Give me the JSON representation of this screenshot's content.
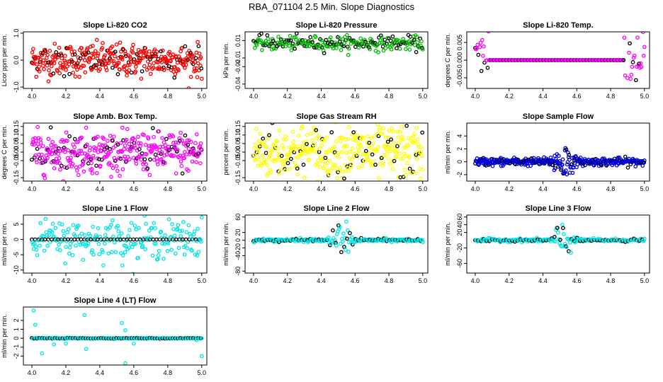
{
  "title": "RBA_071104  2.5 Min. Slope Diagnostics",
  "chart_data": [
    {
      "type": "scatter",
      "title": "Slope Li-820 CO2",
      "ylabel": "Licor ppm per min.",
      "color": "#ff0000",
      "xlim": [
        3.95,
        5.03
      ],
      "ylim": [
        -1.05,
        1.05
      ],
      "xticks": [
        "4.0",
        "4.2",
        "4.4",
        "4.6",
        "4.8",
        "5.0"
      ],
      "xtick_values": [
        4.0,
        4.2,
        4.4,
        4.6,
        4.8,
        5.0
      ],
      "yticks": [
        "-1.0",
        "0.0",
        "1.0"
      ],
      "ytick_values": [
        -1.0,
        0.0,
        1.0
      ],
      "n_points": 380,
      "spread": 0.3,
      "black_every": 6
    },
    {
      "type": "scatter",
      "title": "Slope Li-820 Pressure",
      "ylabel": "kPa per min.",
      "color": "#00bb00",
      "xlim": [
        3.95,
        5.03
      ],
      "ylim": [
        -0.045,
        0.02
      ],
      "xticks": [
        "4.0",
        "4.2",
        "4.4",
        "4.6",
        "4.8",
        "5.0"
      ],
      "xtick_values": [
        4.0,
        4.2,
        4.4,
        4.6,
        4.8,
        5.0
      ],
      "yticks": [
        "-0.04",
        "-0.02",
        "-0.01",
        "0.01"
      ],
      "ytick_values": [
        -0.04,
        -0.02,
        -0.01,
        0.01
      ],
      "n_points": 260,
      "spread": 0.004,
      "center": 0.007,
      "black_every": 3
    },
    {
      "type": "scatter",
      "title": "Slope Li-820 Temp.",
      "ylabel": "degrees C per min.",
      "color": "#ff00ff",
      "xlim": [
        3.95,
        5.03
      ],
      "ylim": [
        -0.008,
        0.008
      ],
      "xticks": [
        "4.0",
        "4.2",
        "4.4",
        "4.6",
        "4.8",
        "5.0"
      ],
      "xtick_values": [
        4.0,
        4.2,
        4.4,
        4.6,
        4.8,
        5.0
      ],
      "yticks": [
        "-0.005",
        "0.000",
        "0.005"
      ],
      "ytick_values": [
        -0.005,
        0.0,
        0.005
      ],
      "n_points": 220,
      "spread": 0.004,
      "black_every": 4
    },
    {
      "type": "scatter",
      "title": "Slope Amb. Box Temp.",
      "ylabel": "degrees C per min.",
      "color": "#ff00ff",
      "xlim": [
        3.95,
        5.03
      ],
      "ylim": [
        -0.17,
        0.17
      ],
      "xticks": [
        "4.0",
        "4.2",
        "4.4",
        "4.6",
        "4.8",
        "5.0"
      ],
      "xtick_values": [
        4.0,
        4.2,
        4.4,
        4.6,
        4.8,
        5.0
      ],
      "yticks": [
        "-0.15",
        "-0.05",
        "0.00",
        "0.05",
        "0.10",
        "0.15"
      ],
      "ytick_values": [
        -0.15,
        -0.05,
        0.0,
        0.05,
        0.1,
        0.15
      ],
      "n_points": 380,
      "spread": 0.06,
      "black_every": 6
    },
    {
      "type": "scatter",
      "title": "Slope Gas Stream RH",
      "ylabel": "percent per min.",
      "color": "#ffff00",
      "xlim": [
        3.95,
        5.03
      ],
      "ylim": [
        -0.17,
        0.17
      ],
      "xticks": [
        "4.0",
        "4.2",
        "4.4",
        "4.6",
        "4.8",
        "5.0"
      ],
      "xtick_values": [
        4.0,
        4.2,
        4.4,
        4.6,
        4.8,
        5.0
      ],
      "yticks": [
        "-0.15",
        "-0.05",
        "0.00",
        "0.05",
        "0.10",
        "0.15"
      ],
      "ytick_values": [
        -0.15,
        -0.05,
        0.0,
        0.05,
        0.1,
        0.15
      ],
      "n_points": 380,
      "spread": 0.08,
      "black_every": 7
    },
    {
      "type": "scatter",
      "title": "Slope Sample Flow",
      "ylabel": "ml/min per min.",
      "color": "#0000dd",
      "xlim": [
        3.95,
        5.03
      ],
      "ylim": [
        -3,
        6
      ],
      "xticks": [
        "4.0",
        "4.2",
        "4.4",
        "4.6",
        "4.8",
        "5.0"
      ],
      "xtick_values": [
        4.0,
        4.2,
        4.4,
        4.6,
        4.8,
        5.0
      ],
      "yticks": [
        "-2",
        "0",
        "2",
        "4"
      ],
      "ytick_values": [
        -2,
        0,
        2,
        4
      ],
      "n_points": 380,
      "spread": 0.3,
      "spike_center": 4.52,
      "spike_amp": 3,
      "black_every": 6
    },
    {
      "type": "scatter",
      "title": "Slope Line 1 Flow",
      "ylabel": "ml/min per min.",
      "color": "#00e5e5",
      "xlim": [
        3.95,
        5.03
      ],
      "ylim": [
        -11,
        8
      ],
      "xticks": [
        "4.0",
        "4.2",
        "4.4",
        "4.6",
        "4.8",
        "5.0"
      ],
      "xtick_values": [
        4.0,
        4.2,
        4.4,
        4.6,
        4.8,
        5.0
      ],
      "yticks": [
        "-10",
        "-5",
        "0",
        "5"
      ],
      "ytick_values": [
        -10,
        -5,
        0,
        5
      ],
      "n_points": 260,
      "spread": 3,
      "black_every": 5,
      "black_flat": true
    },
    {
      "type": "scatter",
      "title": "Slope Line 2 Flow",
      "ylabel": "ml/min per min.",
      "color": "#00e5e5",
      "xlim": [
        3.95,
        5.03
      ],
      "ylim": [
        -85,
        65
      ],
      "xticks": [
        "4.0",
        "4.2",
        "4.4",
        "4.6",
        "4.8",
        "5.0"
      ],
      "xtick_values": [
        4.0,
        4.2,
        4.4,
        4.6,
        4.8,
        5.0
      ],
      "yticks": [
        "-80",
        "-40",
        "-20",
        "0",
        "20",
        "60"
      ],
      "ytick_values": [
        -80,
        -40,
        -20,
        0,
        20,
        60
      ],
      "n_points": 240,
      "spread": 2,
      "spike_center": 4.52,
      "spike_amp": 60,
      "black_every": 4
    },
    {
      "type": "scatter",
      "title": "Slope Line 3 Flow",
      "ylabel": "ml/min per min.",
      "color": "#00e5e5",
      "xlim": [
        3.95,
        5.03
      ],
      "ylim": [
        -85,
        65
      ],
      "xticks": [
        "4.0",
        "4.2",
        "4.4",
        "4.6",
        "4.8",
        "5.0"
      ],
      "xtick_values": [
        4.0,
        4.2,
        4.4,
        4.6,
        4.8,
        5.0
      ],
      "yticks": [
        "-60",
        "-20",
        "20",
        "40",
        "60"
      ],
      "ytick_values": [
        -60,
        -20,
        20,
        40,
        60
      ],
      "n_points": 240,
      "spread": 2,
      "spike_center": 4.52,
      "spike_amp": 60,
      "black_every": 4
    },
    {
      "type": "scatter",
      "title": "Slope Line 4 (LT) Flow",
      "ylabel": "ml/min per min.",
      "color": "#00e5e5",
      "xlim": [
        3.95,
        5.03
      ],
      "ylim": [
        -3,
        3.5
      ],
      "xticks": [
        "4.0",
        "4.2",
        "4.4",
        "4.6",
        "4.8",
        "5.0"
      ],
      "xtick_values": [
        4.0,
        4.2,
        4.4,
        4.6,
        4.8,
        5.0
      ],
      "yticks": [
        "-2",
        "-1",
        "0",
        "1",
        "2"
      ],
      "ytick_values": [
        -2,
        -1,
        0,
        1,
        2
      ],
      "n_points": 200,
      "spread": 0.02,
      "outliers": [
        [
          4.01,
          3.1
        ],
        [
          4.02,
          1.5
        ],
        [
          4.06,
          -1.7
        ],
        [
          4.13,
          -0.7
        ],
        [
          4.2,
          -0.6
        ],
        [
          4.31,
          2.6
        ],
        [
          4.32,
          -1.2
        ],
        [
          4.53,
          1.7
        ],
        [
          4.55,
          -2.8
        ],
        [
          4.55,
          0.9
        ],
        [
          4.6,
          -0.6
        ],
        [
          4.97,
          -0.2
        ],
        [
          5.0,
          -2.0
        ]
      ],
      "black_every": 3
    }
  ]
}
